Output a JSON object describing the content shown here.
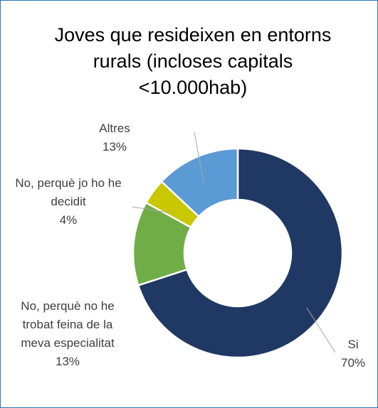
{
  "chart_data": {
    "type": "donut",
    "title": "Joves que resideixen en entorns rurals (incloses capitals <10.000hab)",
    "categories": [
      "Si",
      "No, perquè no he trobat feina de la meva especialitat",
      "No, perquè jo ho he decidit",
      "Altres"
    ],
    "values": [
      70,
      13,
      4,
      13
    ],
    "value_labels": [
      "70%",
      "13%",
      "4%",
      "13%"
    ],
    "colors": [
      "#203864",
      "#70ad47",
      "#c9c700",
      "#5b9bd5"
    ]
  }
}
